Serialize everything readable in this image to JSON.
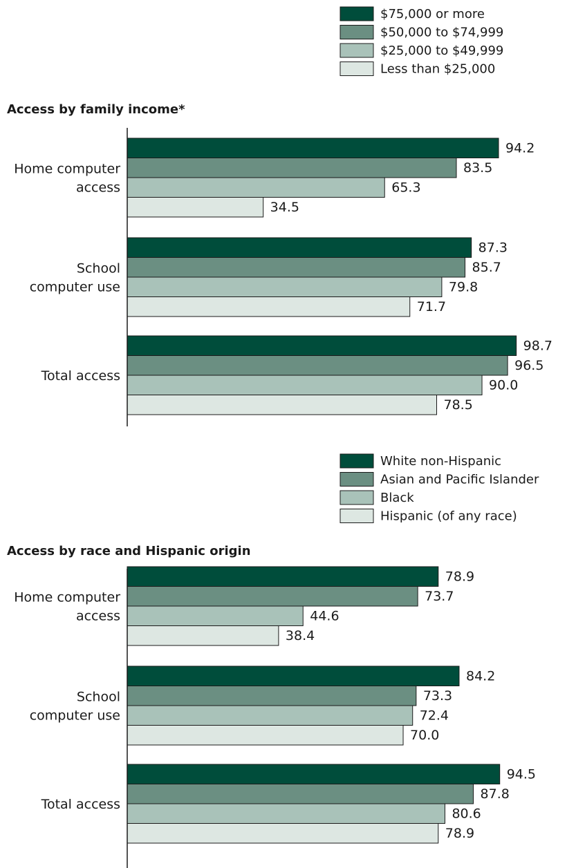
{
  "colors": [
    "#004d3b",
    "#6b8f82",
    "#a9c2b9",
    "#dde7e2"
  ],
  "chart_data": [
    {
      "type": "bar",
      "orientation": "horizontal",
      "title": "Access by family income*",
      "categories": [
        [
          "Home computer",
          "access"
        ],
        [
          "School",
          "computer use"
        ],
        [
          "Total access"
        ]
      ],
      "series": [
        {
          "name": "$75,000 or more",
          "values": [
            94.2,
            87.3,
            98.7
          ]
        },
        {
          "name": "$50,000 to $74,999",
          "values": [
            83.5,
            85.7,
            96.5
          ]
        },
        {
          "name": "$25,000 to $49,999",
          "values": [
            65.3,
            79.8,
            90.0
          ]
        },
        {
          "name": "Less than $25,000",
          "values": [
            34.5,
            71.7,
            78.5
          ]
        }
      ],
      "xlim": [
        0,
        100
      ],
      "grid": false,
      "legend_position": "top-right"
    },
    {
      "type": "bar",
      "orientation": "horizontal",
      "title": "Access by race and Hispanic origin",
      "categories": [
        [
          "Home computer",
          "access"
        ],
        [
          "School",
          "computer use"
        ],
        [
          "Total access"
        ]
      ],
      "series": [
        {
          "name": "White non-Hispanic",
          "values": [
            78.9,
            84.2,
            94.5
          ]
        },
        {
          "name": "Asian and Pacific Islander",
          "values": [
            73.7,
            73.3,
            87.8
          ]
        },
        {
          "name": "Black",
          "values": [
            44.6,
            72.4,
            80.6
          ]
        },
        {
          "name": "Hispanic (of any race)",
          "values": [
            38.4,
            70.0,
            78.9
          ]
        }
      ],
      "xlim": [
        0,
        100
      ],
      "grid": false,
      "legend_position": "top-right"
    }
  ]
}
